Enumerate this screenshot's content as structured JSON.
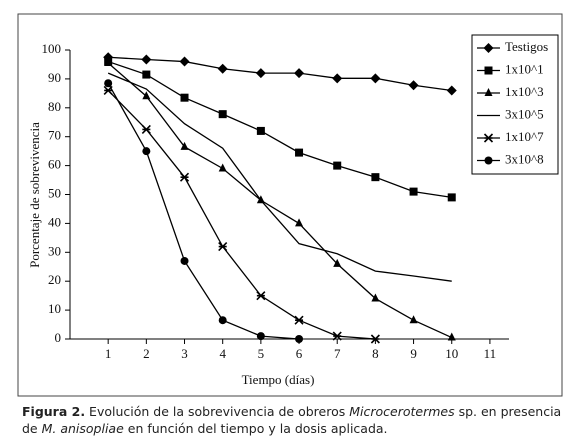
{
  "chart_data": {
    "type": "line",
    "x": [
      1,
      2,
      3,
      4,
      5,
      6,
      7,
      8,
      9,
      10
    ],
    "xlabel": "Tiempo (días)",
    "ylabel": "Porcentaje de sobrevivencia",
    "xlim": [
      0,
      11.5
    ],
    "xticks": [
      1,
      2,
      3,
      4,
      5,
      6,
      7,
      8,
      9,
      10,
      11
    ],
    "ylim": [
      0,
      100
    ],
    "yticks": [
      0,
      10,
      20,
      30,
      40,
      50,
      60,
      70,
      80,
      90,
      100
    ],
    "legend": "top-right",
    "series": [
      {
        "name": "Testigos",
        "color": "#000000",
        "marker": "diamond",
        "values": [
          97.5,
          96.7,
          96,
          93.5,
          92,
          92,
          90.2,
          90.2,
          87.8,
          86
        ]
      },
      {
        "name": "1x10^1",
        "color": "#000000",
        "marker": "square",
        "values": [
          96,
          91.5,
          83.5,
          77.8,
          72,
          64.5,
          60,
          56,
          51,
          49
        ]
      },
      {
        "name": "1x10^3",
        "color": "#000000",
        "marker": "triangle",
        "values": [
          95.5,
          84,
          66.5,
          59,
          48,
          40,
          26,
          14,
          6.5,
          0.5
        ]
      },
      {
        "name": "3x10^5",
        "color": "#000000",
        "marker": "none",
        "values": [
          92,
          86.5,
          74.5,
          66,
          48,
          33,
          29.5,
          23.5,
          21.8,
          20
        ]
      },
      {
        "name": "1x10^7",
        "color": "#000000",
        "marker": "asterisk",
        "values": [
          86,
          72.5,
          56,
          32,
          15,
          6.5,
          1,
          0,
          null,
          null
        ]
      },
      {
        "name": "3x10^8",
        "color": "#000000",
        "marker": "circle",
        "values": [
          88.5,
          65,
          27,
          6.5,
          1,
          0,
          null,
          null,
          null,
          null
        ]
      }
    ]
  },
  "caption": [
    "Figura 2.",
    " Evolución de la sobrevivencia de obreros ",
    "Microcerotermes",
    " sp. en presencia de ",
    "M. anisopliae",
    " en función del tiempo y la dosis aplicada."
  ]
}
